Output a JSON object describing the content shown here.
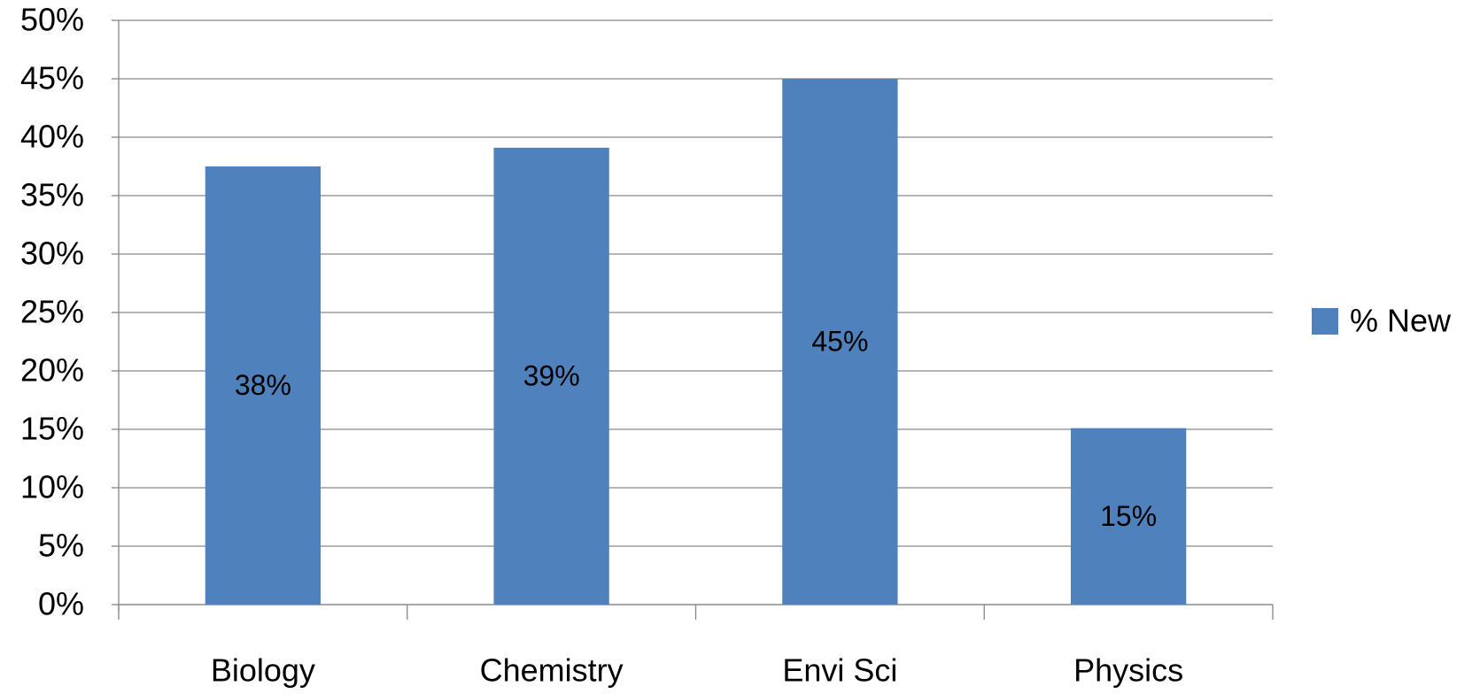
{
  "chart_data": {
    "type": "bar",
    "categories": [
      "Biology",
      "Chemistry",
      "Envi Sci",
      "Physics"
    ],
    "series": [
      {
        "name": "% New",
        "color": "#4f81bd",
        "values": [
          37.5,
          39.1,
          45.0,
          15.1
        ],
        "value_labels": [
          "38%",
          "39%",
          "45%",
          "15%"
        ]
      }
    ],
    "ylim": [
      0,
      50
    ],
    "yticks": [
      {
        "value": 0,
        "label": "0%"
      },
      {
        "value": 5,
        "label": "5%"
      },
      {
        "value": 10,
        "label": "10%"
      },
      {
        "value": 15,
        "label": "15%"
      },
      {
        "value": 20,
        "label": "20%"
      },
      {
        "value": 25,
        "label": "25%"
      },
      {
        "value": 30,
        "label": "30%"
      },
      {
        "value": 35,
        "label": "35%"
      },
      {
        "value": 40,
        "label": "40%"
      },
      {
        "value": 45,
        "label": "45%"
      },
      {
        "value": 50,
        "label": "50%"
      }
    ],
    "grid": true,
    "legend": "right"
  }
}
